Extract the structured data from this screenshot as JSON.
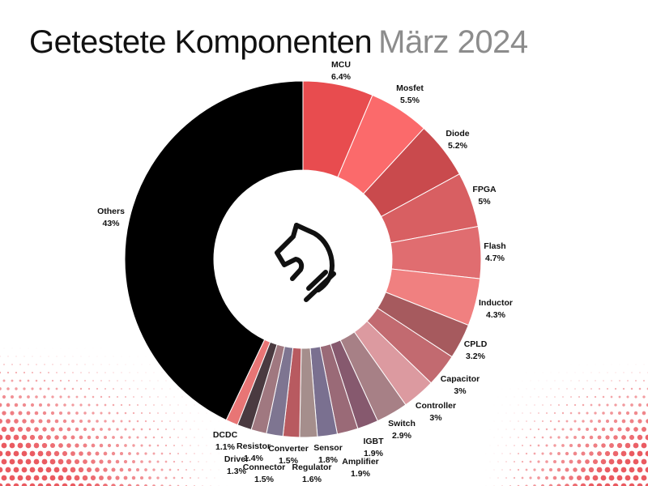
{
  "title": {
    "main": "Getestete Komponenten",
    "sub": "März 2024"
  },
  "colors": {
    "others": "#000000",
    "background": "#ffffff",
    "dot": "#e8484f",
    "icon": "#111111"
  },
  "logo_icon": "knight-horse-icon",
  "chart_data": {
    "type": "pie",
    "donut": true,
    "unit": "%",
    "categories": [
      "MCU",
      "Mosfet",
      "Diode",
      "FPGA",
      "Flash",
      "Inductor",
      "CPLD",
      "Capacitor",
      "Controller",
      "Switch",
      "IGBT",
      "Amplifier",
      "Sensor",
      "Regulator",
      "Converter",
      "Connector",
      "Resistor",
      "Driver",
      "DCDC",
      "Others"
    ],
    "values": [
      6.4,
      5.5,
      5.2,
      5,
      4.7,
      4.3,
      3.2,
      3,
      3,
      2.9,
      1.9,
      1.9,
      1.8,
      1.6,
      1.5,
      1.5,
      1.4,
      1.3,
      1.1,
      43
    ],
    "value_labels": [
      "6.4%",
      "5.5%",
      "5.2%",
      "5%",
      "4.7%",
      "4.3%",
      "3.2%",
      "3%",
      "3%",
      "2.9%",
      "1.9%",
      "1.9%",
      "1.8%",
      "1.6%",
      "1.5%",
      "1.5%",
      "1.4%",
      "1.3%",
      "1.1%",
      "43%"
    ],
    "colors": [
      "#e84c4f",
      "#fb6a6b",
      "#c94a4d",
      "#d85f62",
      "#e06d70",
      "#f08080",
      "#a65a5e",
      "#c26a70",
      "#dc9aa0",
      "#a78086",
      "#86596e",
      "#9a6a77",
      "#7a7090",
      "#a58e8c",
      "#b85a60",
      "#7e7591",
      "#a07880",
      "#4a3a40",
      "#e87575",
      "#000000"
    ],
    "legend": "none",
    "start_angle_deg": 0,
    "direction": "clockwise"
  }
}
